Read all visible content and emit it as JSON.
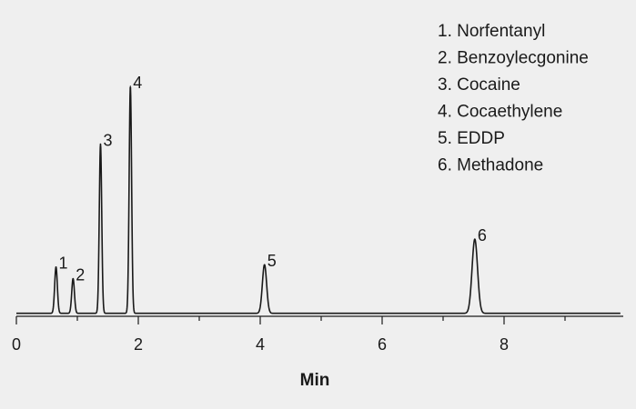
{
  "chart_data": {
    "type": "line",
    "title": "",
    "xlabel": "Min",
    "ylabel": "",
    "xlim": [
      0,
      10
    ],
    "ylim": [
      0,
      100
    ],
    "grid": false,
    "legend_position": "top-right",
    "x_ticks": [
      {
        "value": 0,
        "label": "0"
      },
      {
        "value": 2,
        "label": "2"
      },
      {
        "value": 4,
        "label": "4"
      },
      {
        "value": 6,
        "label": "6"
      },
      {
        "value": 8,
        "label": "8"
      }
    ],
    "x_minor_ticks": [
      1,
      3,
      5,
      7,
      9
    ],
    "baseline": 0.5,
    "peaks": [
      {
        "label": "1",
        "compound": "Norfentanyl",
        "x": 0.65,
        "height": 20,
        "width": 0.022
      },
      {
        "label": "2",
        "compound": "Benzoylecgonine",
        "x": 0.93,
        "height": 15,
        "width": 0.022
      },
      {
        "label": "3",
        "compound": "Cocaine",
        "x": 1.38,
        "height": 73,
        "width": 0.02
      },
      {
        "label": "4",
        "compound": "Cocaethylene",
        "x": 1.87,
        "height": 98,
        "width": 0.02
      },
      {
        "label": "5",
        "compound": "EDDP",
        "x": 4.07,
        "height": 21,
        "width": 0.035
      },
      {
        "label": "6",
        "compound": "Methadone",
        "x": 7.52,
        "height": 32,
        "width": 0.045
      }
    ],
    "legend": [
      "1. Norfentanyl",
      "2. Benzoylecgonine",
      "3. Cocaine",
      "4. Cocaethylene",
      "5. EDDP",
      "6. Methadone"
    ],
    "colors": {
      "trace": "#1a1a1a",
      "axis": "#1a1a1a",
      "background": "#efefef"
    }
  }
}
